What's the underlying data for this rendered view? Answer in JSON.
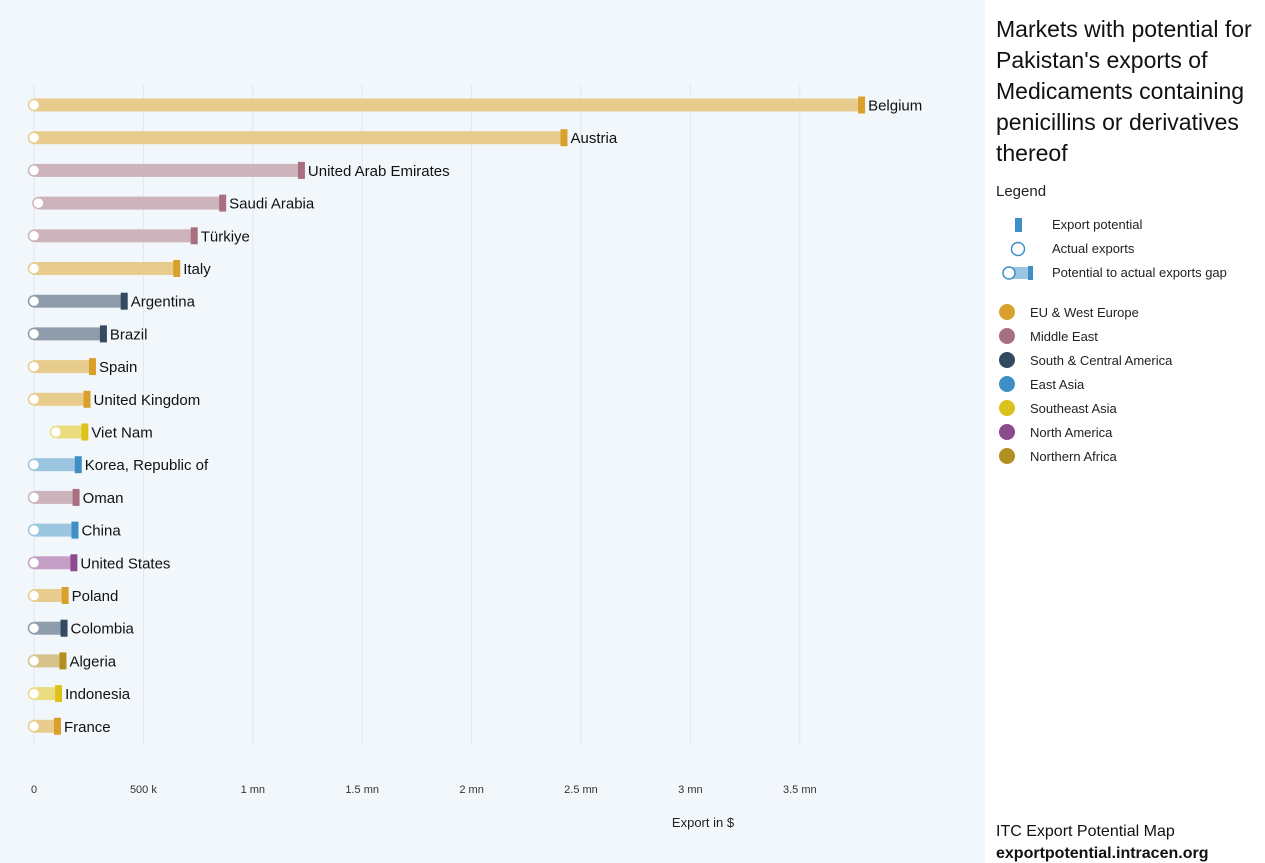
{
  "title": "Markets with potential for Pakistan's exports of Medicaments containing penicillins or derivatives thereof",
  "legend": {
    "title": "Legend",
    "export_potential": "Export potential",
    "actual_exports": "Actual exports",
    "gap": "Potential to actual exports gap"
  },
  "regions": [
    {
      "name": "EU & West Europe",
      "color": "#d9a12b",
      "light": "#e8cc8e"
    },
    {
      "name": "Middle East",
      "color": "#a8707e",
      "light": "#cdb4bc"
    },
    {
      "name": "South & Central America",
      "color": "#344a60",
      "light": "#8e9cab"
    },
    {
      "name": "East Asia",
      "color": "#3d8fc6",
      "light": "#9cc5e0"
    },
    {
      "name": "Southeast Asia",
      "color": "#dcc21a",
      "light": "#ecdc80"
    },
    {
      "name": "North America",
      "color": "#8e4a8e",
      "light": "#c59fc5"
    },
    {
      "name": "Northern Africa",
      "color": "#b38f22",
      "light": "#d6c38a"
    }
  ],
  "footer": {
    "line1": "ITC Export Potential Map",
    "line2": "exportpotential.intracen.org"
  },
  "chart_data": {
    "type": "bar",
    "subtype": "dumbbell-horizontal",
    "xlabel": "Export in $",
    "xlim": [
      0,
      4000000
    ],
    "ticks": [
      {
        "value": 0,
        "label": "0"
      },
      {
        "value": 500000,
        "label": "500 k"
      },
      {
        "value": 1000000,
        "label": "1 mn"
      },
      {
        "value": 1500000,
        "label": "1.5 mn"
      },
      {
        "value": 2000000,
        "label": "2 mn"
      },
      {
        "value": 2500000,
        "label": "2.5 mn"
      },
      {
        "value": 3000000,
        "label": "3 mn"
      },
      {
        "value": 3500000,
        "label": "3.5 mn"
      }
    ],
    "grid": true,
    "markets": [
      {
        "country": "Belgium",
        "region": 0,
        "actual": 0,
        "potential": 3780000
      },
      {
        "country": "Austria",
        "region": 0,
        "actual": 0,
        "potential": 2420000
      },
      {
        "country": "United Arab Emirates",
        "region": 1,
        "actual": 0,
        "potential": 1220000
      },
      {
        "country": "Saudi Arabia",
        "region": 1,
        "actual": 20000,
        "potential": 860000
      },
      {
        "country": "Türkiye",
        "region": 1,
        "actual": 0,
        "potential": 730000
      },
      {
        "country": "Italy",
        "region": 0,
        "actual": 0,
        "potential": 650000
      },
      {
        "country": "Argentina",
        "region": 2,
        "actual": 0,
        "potential": 410000
      },
      {
        "country": "Brazil",
        "region": 2,
        "actual": 0,
        "potential": 315000
      },
      {
        "country": "Spain",
        "region": 0,
        "actual": 0,
        "potential": 265000
      },
      {
        "country": "United Kingdom",
        "region": 0,
        "actual": 0,
        "potential": 240000
      },
      {
        "country": "Viet Nam",
        "region": 4,
        "actual": 100000,
        "potential": 230000
      },
      {
        "country": "Korea, Republic of",
        "region": 3,
        "actual": 0,
        "potential": 200000
      },
      {
        "country": "Oman",
        "region": 1,
        "actual": 0,
        "potential": 190000
      },
      {
        "country": "China",
        "region": 3,
        "actual": 0,
        "potential": 185000
      },
      {
        "country": "United States",
        "region": 5,
        "actual": 0,
        "potential": 180000
      },
      {
        "country": "Poland",
        "region": 0,
        "actual": 0,
        "potential": 140000
      },
      {
        "country": "Colombia",
        "region": 2,
        "actual": 0,
        "potential": 135000
      },
      {
        "country": "Algeria",
        "region": 6,
        "actual": 0,
        "potential": 130000
      },
      {
        "country": "Indonesia",
        "region": 4,
        "actual": 0,
        "potential": 110000
      },
      {
        "country": "France",
        "region": 0,
        "actual": 0,
        "potential": 105000
      }
    ]
  }
}
